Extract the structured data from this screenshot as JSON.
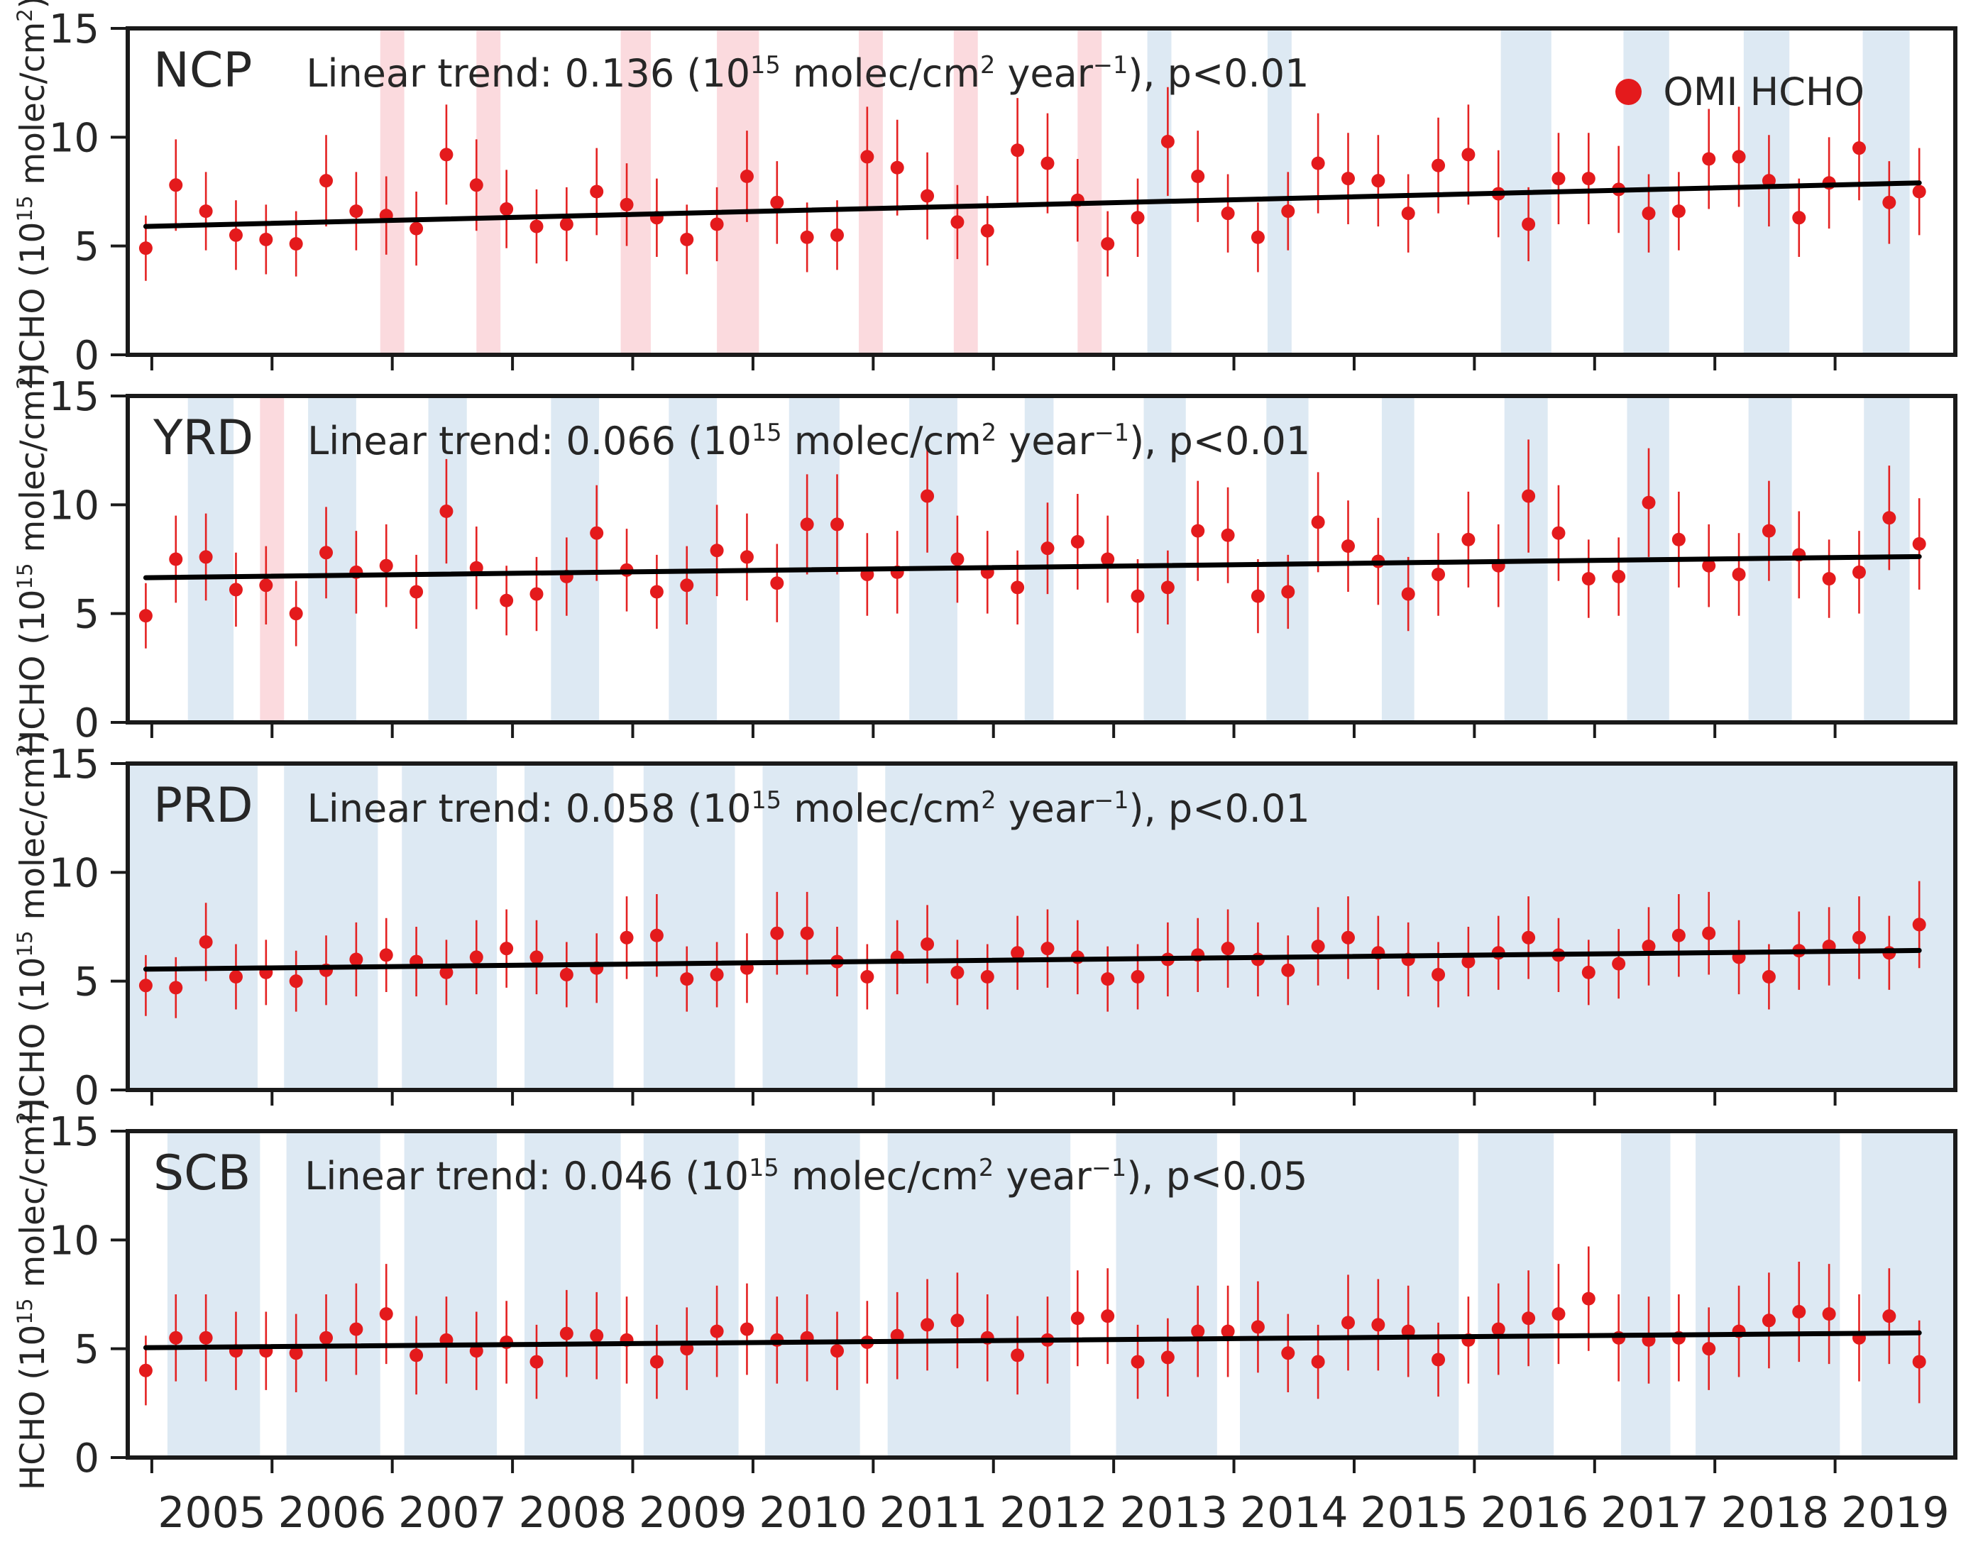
{
  "figure": {
    "legend": {
      "label": "OMI HCHO",
      "marker_color": "#e41a1c"
    },
    "ylabel_parts": {
      "a": "HCHO (10",
      "sup1": "15",
      "b": " molec/cm",
      "sup2": "2",
      "c": ")"
    },
    "unit_parts": {
      "sup15": "15",
      "molec": " molec/cm",
      "sup2": "2",
      "year": " year",
      "supm1": "−1"
    },
    "colors": {
      "point": "#e41a1c",
      "error_bar": "#e42222",
      "trend_line": "#000000",
      "band_blue": "#dde9f3",
      "band_pink": "#fbdade",
      "frame": "#1a1a1a",
      "text": "#262626"
    }
  },
  "axis": {
    "ylim": [
      0,
      15
    ],
    "yticks": [
      0,
      5,
      10,
      15
    ],
    "xlim": [
      2004.8,
      2020.0
    ],
    "xticks": [
      2005,
      2006,
      2007,
      2008,
      2009,
      2010,
      2011,
      2012,
      2013,
      2014,
      2015,
      2016,
      2017,
      2018,
      2019
    ],
    "xtick_labels": [
      "2005",
      "2006",
      "2007",
      "2008",
      "2009",
      "2010",
      "2011",
      "2012",
      "2013",
      "2014",
      "2015",
      "2016",
      "2017",
      "2018",
      "2019"
    ]
  },
  "chart_data": [
    {
      "type": "scatter",
      "region": "NCP",
      "trend_prefix": "Linear trend: 0.136 (10",
      "trend_suffix": "), p<0.01",
      "trend_value": 0.136,
      "significance": "p<0.01",
      "series_name": "OMI HCHO",
      "x_start": 2004.95,
      "x_step": 0.25,
      "values": [
        4.9,
        7.8,
        6.6,
        5.5,
        5.3,
        5.1,
        8.0,
        6.6,
        6.4,
        5.8,
        9.2,
        7.8,
        6.7,
        5.9,
        6.0,
        7.5,
        6.9,
        6.3,
        5.3,
        6.0,
        8.2,
        7.0,
        5.4,
        5.5,
        9.1,
        8.6,
        7.3,
        6.1,
        5.7,
        9.4,
        8.8,
        7.1,
        5.1,
        6.3,
        9.8,
        8.2,
        6.5,
        5.4,
        6.6,
        8.8,
        8.1,
        8.0,
        6.5,
        8.7,
        9.2,
        7.4,
        6.0,
        8.1,
        8.1,
        7.6,
        6.5,
        6.6,
        9.0,
        9.1,
        8.0,
        6.3,
        7.9,
        9.5,
        7.0,
        7.5
      ],
      "errors": [
        1.5,
        2.1,
        1.8,
        1.6,
        1.6,
        1.5,
        2.1,
        1.8,
        1.8,
        1.7,
        2.3,
        2.1,
        1.8,
        1.7,
        1.7,
        2.0,
        1.9,
        1.8,
        1.6,
        1.7,
        2.1,
        1.9,
        1.6,
        1.6,
        2.3,
        2.2,
        2.0,
        1.7,
        1.6,
        2.4,
        2.3,
        1.9,
        1.5,
        1.8,
        2.5,
        2.1,
        1.8,
        1.6,
        1.8,
        2.3,
        2.1,
        2.1,
        1.8,
        2.2,
        2.3,
        2.0,
        1.7,
        2.1,
        2.1,
        2.0,
        1.8,
        1.8,
        2.3,
        2.3,
        2.1,
        1.8,
        2.1,
        2.4,
        1.9,
        2.0
      ],
      "trend_line": {
        "x": [
          2004.95,
          2019.7
        ],
        "y": [
          5.9,
          7.9
        ]
      },
      "bands_pink": [
        [
          2006.9,
          2007.1
        ],
        [
          2007.7,
          2007.9
        ],
        [
          2008.9,
          2009.15
        ],
        [
          2009.7,
          2010.05
        ],
        [
          2010.88,
          2011.08
        ],
        [
          2011.67,
          2011.87
        ],
        [
          2012.7,
          2012.9
        ]
      ],
      "bands_blue": [
        [
          2013.28,
          2013.48
        ],
        [
          2014.28,
          2014.48
        ],
        [
          2016.22,
          2016.64
        ],
        [
          2017.24,
          2017.62
        ],
        [
          2018.24,
          2018.62
        ],
        [
          2019.23,
          2019.62
        ]
      ]
    },
    {
      "type": "scatter",
      "region": "YRD",
      "trend_prefix": "Linear trend: 0.066 (10",
      "trend_suffix": "), p<0.01",
      "trend_value": 0.066,
      "significance": "p<0.01",
      "series_name": "OMI HCHO",
      "x_start": 2004.95,
      "x_step": 0.25,
      "values": [
        4.9,
        7.5,
        7.6,
        6.1,
        6.3,
        5.0,
        7.8,
        6.9,
        7.2,
        6.0,
        9.7,
        7.1,
        5.6,
        5.9,
        6.7,
        8.7,
        7.0,
        6.0,
        6.3,
        7.9,
        7.6,
        6.4,
        9.1,
        9.1,
        6.8,
        6.9,
        10.4,
        7.5,
        6.9,
        6.2,
        8.0,
        8.3,
        7.5,
        5.8,
        6.2,
        8.8,
        8.6,
        5.8,
        6.0,
        9.2,
        8.1,
        7.4,
        5.9,
        6.8,
        8.4,
        7.2,
        10.4,
        8.7,
        6.6,
        6.7,
        10.1,
        8.4,
        7.2,
        6.8,
        8.8,
        7.7,
        6.6,
        6.9,
        9.4,
        8.2
      ],
      "errors": [
        1.5,
        2.0,
        2.0,
        1.7,
        1.8,
        1.5,
        2.1,
        1.9,
        1.9,
        1.7,
        2.4,
        1.9,
        1.6,
        1.7,
        1.8,
        2.2,
        1.9,
        1.7,
        1.8,
        2.1,
        2.0,
        1.8,
        2.3,
        2.3,
        1.9,
        1.9,
        2.6,
        2.0,
        1.9,
        1.7,
        2.1,
        2.2,
        2.0,
        1.7,
        1.7,
        2.3,
        2.2,
        1.7,
        1.7,
        2.3,
        2.1,
        2.0,
        1.7,
        1.9,
        2.2,
        1.9,
        2.6,
        2.2,
        1.8,
        1.8,
        2.5,
        2.2,
        1.9,
        1.9,
        2.3,
        2.0,
        1.8,
        1.9,
        2.4,
        2.1
      ],
      "trend_line": {
        "x": [
          2004.95,
          2019.7
        ],
        "y": [
          6.65,
          7.62
        ]
      },
      "bands_pink": [
        [
          2005.9,
          2006.1
        ]
      ],
      "bands_blue": [
        [
          2005.3,
          2005.68
        ],
        [
          2006.3,
          2006.7
        ],
        [
          2007.3,
          2007.62
        ],
        [
          2008.32,
          2008.72
        ],
        [
          2009.3,
          2009.7
        ],
        [
          2010.3,
          2010.72
        ],
        [
          2011.3,
          2011.7
        ],
        [
          2012.26,
          2012.5
        ],
        [
          2013.25,
          2013.6
        ],
        [
          2014.27,
          2014.62
        ],
        [
          2015.23,
          2015.5
        ],
        [
          2016.25,
          2016.61
        ],
        [
          2017.27,
          2017.62
        ],
        [
          2018.28,
          2018.64
        ],
        [
          2019.24,
          2019.62
        ]
      ]
    },
    {
      "type": "scatter",
      "region": "PRD",
      "trend_prefix": "Linear trend: 0.058 (10",
      "trend_suffix": "), p<0.01",
      "trend_value": 0.058,
      "significance": "p<0.01",
      "series_name": "OMI HCHO",
      "x_start": 2004.95,
      "x_step": 0.25,
      "values": [
        4.8,
        4.7,
        6.8,
        5.2,
        5.4,
        5.0,
        5.5,
        6.0,
        6.2,
        5.9,
        5.4,
        6.1,
        6.5,
        6.1,
        5.3,
        5.6,
        7.0,
        7.1,
        5.1,
        5.3,
        5.6,
        7.2,
        7.2,
        5.9,
        5.2,
        6.1,
        6.7,
        5.4,
        5.2,
        6.3,
        6.5,
        6.1,
        5.1,
        5.2,
        6.0,
        6.2,
        6.5,
        6.0,
        5.5,
        6.6,
        7.0,
        6.3,
        6.0,
        5.3,
        5.9,
        6.3,
        7.0,
        6.2,
        5.4,
        5.8,
        6.6,
        7.1,
        7.2,
        6.1,
        5.2,
        6.4,
        6.6,
        7.0,
        6.3,
        7.6
      ],
      "errors": [
        1.4,
        1.4,
        1.8,
        1.5,
        1.5,
        1.4,
        1.6,
        1.7,
        1.7,
        1.6,
        1.5,
        1.7,
        1.8,
        1.7,
        1.5,
        1.6,
        1.9,
        1.9,
        1.5,
        1.5,
        1.6,
        1.9,
        1.9,
        1.6,
        1.5,
        1.7,
        1.8,
        1.5,
        1.5,
        1.7,
        1.8,
        1.7,
        1.5,
        1.5,
        1.7,
        1.7,
        1.8,
        1.7,
        1.6,
        1.8,
        1.9,
        1.7,
        1.7,
        1.5,
        1.6,
        1.7,
        1.9,
        1.7,
        1.5,
        1.6,
        1.8,
        1.9,
        1.9,
        1.7,
        1.5,
        1.8,
        1.8,
        1.9,
        1.7,
        2.0
      ],
      "trend_line": {
        "x": [
          2004.95,
          2019.7
        ],
        "y": [
          5.55,
          6.41
        ]
      },
      "bands_pink": [],
      "bands_blue": [
        [
          2004.8,
          2005.88
        ],
        [
          2006.1,
          2006.88
        ],
        [
          2007.08,
          2007.87
        ],
        [
          2008.1,
          2008.84
        ],
        [
          2009.09,
          2009.85
        ],
        [
          2010.08,
          2010.87
        ],
        [
          2011.1,
          2020.0
        ]
      ]
    },
    {
      "type": "scatter",
      "region": "SCB",
      "trend_prefix": "Linear trend: 0.046 (10",
      "trend_suffix": "), p<0.05",
      "trend_value": 0.046,
      "significance": "p<0.05",
      "series_name": "OMI HCHO",
      "x_start": 2004.95,
      "x_step": 0.25,
      "values": [
        4.0,
        5.5,
        5.5,
        4.9,
        4.9,
        4.8,
        5.5,
        5.9,
        6.6,
        4.7,
        5.4,
        4.9,
        5.3,
        4.4,
        5.7,
        5.6,
        5.4,
        4.4,
        5.0,
        5.8,
        5.9,
        5.4,
        5.5,
        4.9,
        5.3,
        5.6,
        6.1,
        6.3,
        5.5,
        4.7,
        5.4,
        6.4,
        6.5,
        4.4,
        4.6,
        5.8,
        5.8,
        6.0,
        4.8,
        4.4,
        6.2,
        6.1,
        5.8,
        4.5,
        5.4,
        5.9,
        6.4,
        6.6,
        7.3,
        5.5,
        5.4,
        5.5,
        5.0,
        5.8,
        6.3,
        6.7,
        6.6,
        5.5,
        6.5,
        4.4
      ],
      "errors": [
        1.6,
        2.0,
        2.0,
        1.8,
        1.8,
        1.8,
        2.0,
        2.1,
        2.3,
        1.8,
        2.0,
        1.8,
        1.9,
        1.7,
        2.0,
        2.0,
        2.0,
        1.7,
        1.9,
        2.1,
        2.1,
        2.0,
        2.0,
        1.8,
        1.9,
        2.0,
        2.1,
        2.2,
        2.0,
        1.8,
        2.0,
        2.2,
        2.2,
        1.7,
        1.8,
        2.1,
        2.1,
        2.1,
        1.8,
        1.7,
        2.2,
        2.1,
        2.1,
        1.7,
        2.0,
        2.1,
        2.2,
        2.3,
        2.4,
        2.0,
        2.0,
        2.0,
        1.9,
        2.1,
        2.2,
        2.3,
        2.3,
        2.0,
        2.2,
        1.9
      ],
      "trend_line": {
        "x": [
          2004.95,
          2019.7
        ],
        "y": [
          5.05,
          5.73
        ]
      },
      "bands_pink": [],
      "bands_blue": [
        [
          2005.13,
          2005.9
        ],
        [
          2006.12,
          2006.9
        ],
        [
          2007.1,
          2007.87
        ],
        [
          2008.1,
          2008.9
        ],
        [
          2009.09,
          2009.88
        ],
        [
          2010.1,
          2010.89
        ],
        [
          2011.12,
          2012.64
        ],
        [
          2013.02,
          2013.86
        ],
        [
          2014.05,
          2015.87
        ],
        [
          2016.03,
          2016.66
        ],
        [
          2017.22,
          2017.63
        ],
        [
          2017.84,
          2019.04
        ],
        [
          2019.22,
          2020.0
        ]
      ]
    }
  ]
}
